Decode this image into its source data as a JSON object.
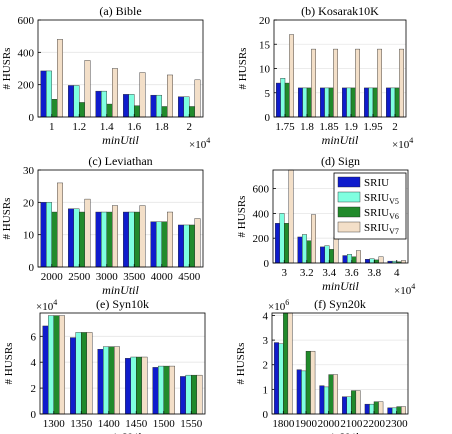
{
  "colors": {
    "SRIU": "#0f1ccc",
    "SRIU_V5": "#7fffe0",
    "SRIU_V6": "#218a2b",
    "SRIU_V7": "#f3dfc8",
    "edge": "#222222",
    "grid": "#e6e6e6"
  },
  "legend": {
    "placement": "top-right of panel (d)",
    "entries": [
      {
        "key": "SRIU",
        "base": "SRIU",
        "sub": ""
      },
      {
        "key": "SRIU_V5",
        "base": "SRIU",
        "sub": "V5"
      },
      {
        "key": "SRIU_V6",
        "base": "SRIU",
        "sub": "V6"
      },
      {
        "key": "SRIU_V7",
        "base": "SRIU",
        "sub": "V7"
      }
    ]
  },
  "chart_data": [
    {
      "type": "bar",
      "title": "(a) Bible",
      "ylabel": "# HUSRs",
      "xlabel": "minUtil",
      "x_multiplier": "×10",
      "x_multiplier_exp": "4",
      "y_multiplier": "",
      "y_multiplier_exp": "",
      "categories": [
        "1",
        "1.2",
        "1.4",
        "1.6",
        "1.8",
        "2"
      ],
      "ylim": [
        0,
        600
      ],
      "yticks": [
        0,
        200,
        400,
        600
      ],
      "ytick_labels": [
        "0",
        "200",
        "400",
        "600"
      ],
      "series": [
        {
          "key": "SRIU",
          "values": [
            285,
            195,
            160,
            140,
            135,
            125
          ]
        },
        {
          "key": "SRIU_V5",
          "values": [
            285,
            195,
            160,
            140,
            135,
            125
          ]
        },
        {
          "key": "SRIU_V6",
          "values": [
            110,
            90,
            80,
            70,
            65,
            65
          ]
        },
        {
          "key": "SRIU_V7",
          "values": [
            480,
            350,
            300,
            275,
            260,
            230
          ]
        }
      ]
    },
    {
      "type": "bar",
      "title": "(b) Kosarak10K",
      "ylabel": "# HUSRs",
      "xlabel": "minUtil",
      "x_multiplier": "×10",
      "x_multiplier_exp": "4",
      "y_multiplier": "",
      "y_multiplier_exp": "",
      "categories": [
        "1.75",
        "1.8",
        "1.85",
        "1.9",
        "1.95",
        "2"
      ],
      "ylim": [
        0,
        20
      ],
      "yticks": [
        0,
        5,
        10,
        15,
        20
      ],
      "ytick_labels": [
        "0",
        "5",
        "10",
        "15",
        "20"
      ],
      "series": [
        {
          "key": "SRIU",
          "values": [
            7,
            6,
            6,
            6,
            6,
            6
          ]
        },
        {
          "key": "SRIU_V5",
          "values": [
            8,
            6,
            6,
            6,
            6,
            6
          ]
        },
        {
          "key": "SRIU_V6",
          "values": [
            7,
            6,
            6,
            6,
            6,
            6
          ]
        },
        {
          "key": "SRIU_V7",
          "values": [
            17,
            14,
            14,
            14,
            14,
            14
          ]
        }
      ]
    },
    {
      "type": "bar",
      "title": "(c) Leviathan",
      "ylabel": "# HUSRs",
      "xlabel": "minUtil",
      "x_multiplier": "",
      "x_multiplier_exp": "",
      "y_multiplier": "",
      "y_multiplier_exp": "",
      "categories": [
        "2000",
        "2500",
        "3000",
        "3500",
        "4000",
        "4500"
      ],
      "ylim": [
        0,
        30
      ],
      "yticks": [
        0,
        10,
        20,
        30
      ],
      "ytick_labels": [
        "0",
        "10",
        "20",
        "30"
      ],
      "series": [
        {
          "key": "SRIU",
          "values": [
            20,
            18,
            17,
            17,
            14,
            13
          ]
        },
        {
          "key": "SRIU_V5",
          "values": [
            20,
            18,
            17,
            17,
            14,
            13
          ]
        },
        {
          "key": "SRIU_V6",
          "values": [
            17,
            17,
            17,
            17,
            14,
            13
          ]
        },
        {
          "key": "SRIU_V7",
          "values": [
            26,
            21,
            19,
            19,
            17,
            15
          ]
        }
      ]
    },
    {
      "type": "bar",
      "title": "(d) Sign",
      "ylabel": "# HUSRs",
      "xlabel": "minUtil",
      "x_multiplier": "×10",
      "x_multiplier_exp": "4",
      "y_multiplier": "",
      "y_multiplier_exp": "",
      "categories": [
        "3",
        "3.2",
        "3.4",
        "3.6",
        "3.8",
        "4"
      ],
      "ylim": [
        0,
        750
      ],
      "yticks": [
        0,
        200,
        400,
        600
      ],
      "ytick_labels": [
        "0",
        "200",
        "400",
        "600"
      ],
      "series": [
        {
          "key": "SRIU",
          "values": [
            320,
            210,
            130,
            60,
            30,
            15
          ]
        },
        {
          "key": "SRIU_V5",
          "values": [
            400,
            230,
            140,
            70,
            35,
            15
          ]
        },
        {
          "key": "SRIU_V6",
          "values": [
            320,
            180,
            110,
            50,
            25,
            10
          ]
        },
        {
          "key": "SRIU_V7",
          "values": [
            750,
            390,
            210,
            100,
            50,
            20
          ]
        }
      ]
    },
    {
      "type": "bar",
      "title": "(e) Syn10k",
      "ylabel": "# HUSRs",
      "xlabel": "minUtil",
      "x_multiplier": "",
      "x_multiplier_exp": "",
      "y_multiplier": "×10",
      "y_multiplier_exp": "4",
      "categories": [
        "1300",
        "1350",
        "1400",
        "1450",
        "1500",
        "1550"
      ],
      "ylim": [
        0,
        7.8
      ],
      "yticks": [
        0,
        2,
        4,
        6
      ],
      "ytick_labels": [
        "0",
        "2",
        "4",
        "6"
      ],
      "series": [
        {
          "key": "SRIU",
          "values": [
            6.8,
            5.9,
            5.0,
            4.3,
            3.6,
            2.9
          ]
        },
        {
          "key": "SRIU_V5",
          "values": [
            7.6,
            6.3,
            5.2,
            4.4,
            3.7,
            3.0
          ]
        },
        {
          "key": "SRIU_V6",
          "values": [
            7.6,
            6.3,
            5.2,
            4.4,
            3.7,
            3.0
          ]
        },
        {
          "key": "SRIU_V7",
          "values": [
            7.6,
            6.3,
            5.2,
            4.4,
            3.7,
            3.0
          ]
        }
      ]
    },
    {
      "type": "bar",
      "title": "(f) Syn20k",
      "ylabel": "# HUSRs",
      "xlabel": "minUtil",
      "x_multiplier": "",
      "x_multiplier_exp": "",
      "y_multiplier": "×10",
      "y_multiplier_exp": "6",
      "categories": [
        "1800",
        "1900",
        "2000",
        "2100",
        "2200",
        "2300"
      ],
      "ylim": [
        0,
        4.1
      ],
      "yticks": [
        0,
        1,
        2,
        3,
        4
      ],
      "ytick_labels": [
        "0",
        "1",
        "2",
        "3",
        "4"
      ],
      "series": [
        {
          "key": "SRIU",
          "values": [
            2.9,
            1.8,
            1.15,
            0.7,
            0.4,
            0.25
          ]
        },
        {
          "key": "SRIU_V5",
          "values": [
            2.85,
            1.75,
            1.1,
            0.7,
            0.4,
            0.25
          ]
        },
        {
          "key": "SRIU_V6",
          "values": [
            4.1,
            2.55,
            1.6,
            0.95,
            0.5,
            0.3
          ]
        },
        {
          "key": "SRIU_V7",
          "values": [
            4.1,
            2.55,
            1.6,
            0.95,
            0.5,
            0.3
          ]
        }
      ]
    }
  ]
}
